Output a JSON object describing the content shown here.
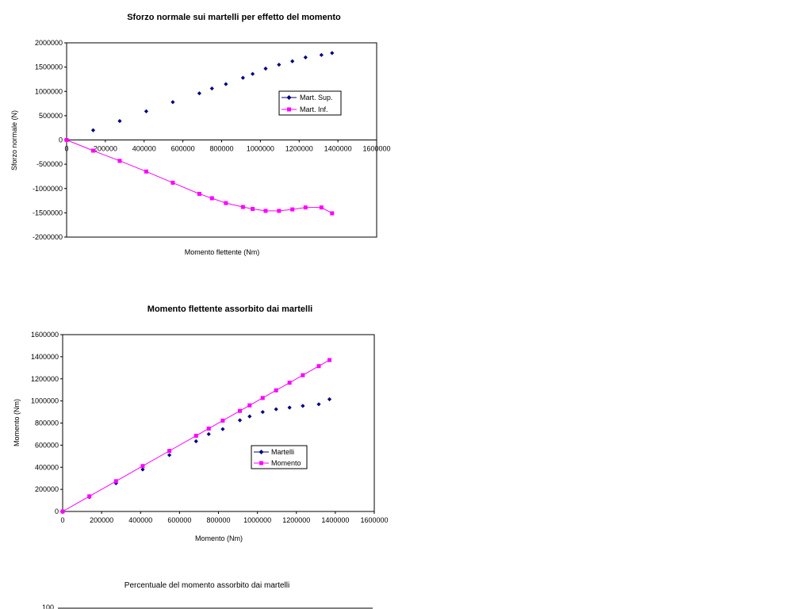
{
  "chart_data": [
    {
      "type": "scatter",
      "title": "Sforzo normale sui martelli per effetto del momento",
      "xlabel": "Momento flettente (Nm)",
      "ylabel": "Sforzo normale (N)",
      "xlim": [
        0,
        1600000
      ],
      "ylim": [
        -2000000,
        2000000
      ],
      "x_ticks": [
        "0",
        "200000",
        "400000",
        "600000",
        "800000",
        "1000000",
        "1200000",
        "1400000",
        "1600000"
      ],
      "y_ticks": [
        "2000000",
        "1500000",
        "1000000",
        "500000",
        "0",
        "-500000",
        "-1000000",
        "-1500000",
        "-2000000"
      ],
      "legend_position": "right",
      "grid": false,
      "series": [
        {
          "name": "Mart. Sup.",
          "color": "#000080",
          "marker": "diamond",
          "line": false,
          "x": [
            0,
            137000,
            274000,
            411000,
            548000,
            685000,
            750000,
            822000,
            910000,
            960000,
            1027000,
            1096000,
            1165000,
            1233000,
            1315000,
            1370000
          ],
          "y": [
            0,
            200000,
            390000,
            590000,
            780000,
            960000,
            1060000,
            1150000,
            1280000,
            1360000,
            1470000,
            1550000,
            1620000,
            1700000,
            1750000,
            1790000
          ]
        },
        {
          "name": "Mart. Inf.",
          "color": "#FF00FF",
          "marker": "square",
          "line": true,
          "x": [
            0,
            137000,
            274000,
            411000,
            548000,
            685000,
            750000,
            822000,
            910000,
            960000,
            1027000,
            1096000,
            1165000,
            1233000,
            1315000,
            1370000
          ],
          "y": [
            0,
            -220000,
            -430000,
            -650000,
            -880000,
            -1110000,
            -1200000,
            -1300000,
            -1380000,
            -1420000,
            -1460000,
            -1460000,
            -1430000,
            -1390000,
            -1390000,
            -1510000
          ]
        }
      ]
    },
    {
      "type": "scatter",
      "title": "Momento flettente assorbito dai martelli",
      "xlabel": "Momento (Nm)",
      "ylabel": "Momento (Nm)",
      "xlim": [
        0,
        1600000
      ],
      "ylim": [
        0,
        1600000
      ],
      "x_ticks": [
        "0",
        "200000",
        "400000",
        "600000",
        "800000",
        "1000000",
        "1200000",
        "1400000",
        "1600000"
      ],
      "y_ticks": [
        "1600000",
        "1400000",
        "1200000",
        "1000000",
        "800000",
        "600000",
        "400000",
        "200000",
        "0"
      ],
      "legend_position": "right",
      "grid": false,
      "series": [
        {
          "name": "Martelli",
          "color": "#000080",
          "marker": "diamond",
          "line": false,
          "x": [
            0,
            137000,
            274000,
            411000,
            548000,
            685000,
            750000,
            822000,
            910000,
            960000,
            1027000,
            1096000,
            1165000,
            1233000,
            1315000,
            1370000
          ],
          "y": [
            0,
            130000,
            255000,
            380000,
            510000,
            635000,
            700000,
            745000,
            825000,
            860000,
            900000,
            925000,
            940000,
            955000,
            970000,
            1015000
          ]
        },
        {
          "name": "Momento",
          "color": "#FF00FF",
          "marker": "square",
          "line": true,
          "x": [
            0,
            137000,
            274000,
            411000,
            548000,
            685000,
            750000,
            822000,
            910000,
            960000,
            1027000,
            1096000,
            1165000,
            1233000,
            1315000,
            1370000
          ],
          "y": [
            0,
            137000,
            274000,
            411000,
            548000,
            685000,
            750000,
            822000,
            910000,
            960000,
            1027000,
            1096000,
            1165000,
            1233000,
            1315000,
            1370000
          ]
        }
      ]
    },
    {
      "type": "line",
      "title": "Percentuale del momento assorbito dai martelli",
      "y_ticks_visible": [
        "100"
      ]
    }
  ]
}
